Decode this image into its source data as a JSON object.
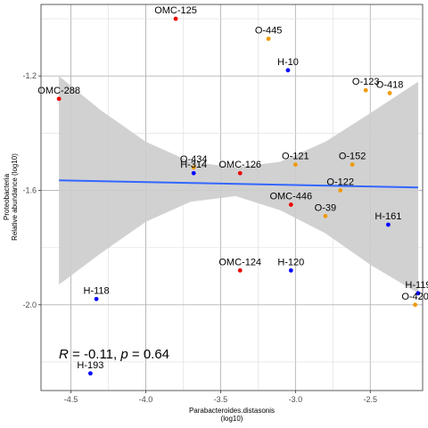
{
  "chart_data": {
    "type": "scatter",
    "xlabel": [
      "Parabacteroides.distasonis",
      "(log10)"
    ],
    "ylabel": [
      "Proteobacteria",
      "Relative abundance (log10)"
    ],
    "xlim": [
      -4.7,
      -2.15
    ],
    "ylim": [
      -2.3,
      -0.95
    ],
    "xticks": [
      -4.5,
      -4.0,
      -3.5,
      -3.0,
      -2.5
    ],
    "yticks": [
      -2.0,
      -1.6,
      -1.2
    ],
    "xtick_labels": [
      "-4.5",
      "-4.0",
      "-3.5",
      "-3.0",
      "-2.5"
    ],
    "ytick_labels": [
      "-2.0",
      "-1.6",
      "-1.2"
    ],
    "grid": true,
    "legend": "none",
    "colors": {
      "H": "#0000ff",
      "O": "#ee9a00",
      "OMC": "#ee0000",
      "fit": "#3366ff",
      "band": "#cccccc"
    },
    "points": [
      {
        "label": "OMC-125",
        "x": -3.8,
        "y": -1.0,
        "group": "OMC"
      },
      {
        "label": "O-445",
        "x": -3.18,
        "y": -1.07,
        "group": "O"
      },
      {
        "label": "H-10",
        "x": -3.05,
        "y": -1.18,
        "group": "H"
      },
      {
        "label": "O-123",
        "x": -2.53,
        "y": -1.25,
        "group": "O"
      },
      {
        "label": "O-418",
        "x": -2.37,
        "y": -1.26,
        "group": "O"
      },
      {
        "label": "OMC-288",
        "x": -4.58,
        "y": -1.28,
        "group": "OMC"
      },
      {
        "label": "O-434",
        "x": -3.68,
        "y": -1.52,
        "group": "O"
      },
      {
        "label": "H-314",
        "x": -3.68,
        "y": -1.54,
        "group": "H"
      },
      {
        "label": "OMC-126",
        "x": -3.37,
        "y": -1.54,
        "group": "OMC"
      },
      {
        "label": "O-121",
        "x": -3.0,
        "y": -1.51,
        "group": "O"
      },
      {
        "label": "O-152",
        "x": -2.62,
        "y": -1.51,
        "group": "O"
      },
      {
        "label": "O-122",
        "x": -2.7,
        "y": -1.6,
        "group": "O"
      },
      {
        "label": "OMC-446",
        "x": -3.03,
        "y": -1.65,
        "group": "OMC"
      },
      {
        "label": "O-39",
        "x": -2.8,
        "y": -1.69,
        "group": "O"
      },
      {
        "label": "H-161",
        "x": -2.38,
        "y": -1.72,
        "group": "H"
      },
      {
        "label": "OMC-124",
        "x": -3.37,
        "y": -1.88,
        "group": "OMC"
      },
      {
        "label": "H-120",
        "x": -3.03,
        "y": -1.88,
        "group": "H"
      },
      {
        "label": "H-118",
        "x": -4.33,
        "y": -1.98,
        "group": "H"
      },
      {
        "label": "H-119",
        "x": -2.18,
        "y": -1.96,
        "group": "H"
      },
      {
        "label": "O-420",
        "x": -2.2,
        "y": -2.0,
        "group": "O"
      },
      {
        "label": "H-193",
        "x": -4.37,
        "y": -2.24,
        "group": "H"
      }
    ],
    "fit": {
      "x": [
        -4.58,
        -2.18
      ],
      "y": [
        -1.565,
        -1.59
      ]
    },
    "band": {
      "x": [
        -4.58,
        -4.3,
        -4.0,
        -3.7,
        -3.4,
        -3.1,
        -2.8,
        -2.5,
        -2.18
      ],
      "upper": [
        -1.2,
        -1.32,
        -1.43,
        -1.5,
        -1.52,
        -1.5,
        -1.43,
        -1.33,
        -1.22
      ],
      "lower": [
        -1.93,
        -1.82,
        -1.71,
        -1.64,
        -1.62,
        -1.67,
        -1.75,
        -1.86,
        -1.96
      ]
    },
    "annotation": {
      "R": "-0.11",
      "p": "0.64"
    }
  }
}
